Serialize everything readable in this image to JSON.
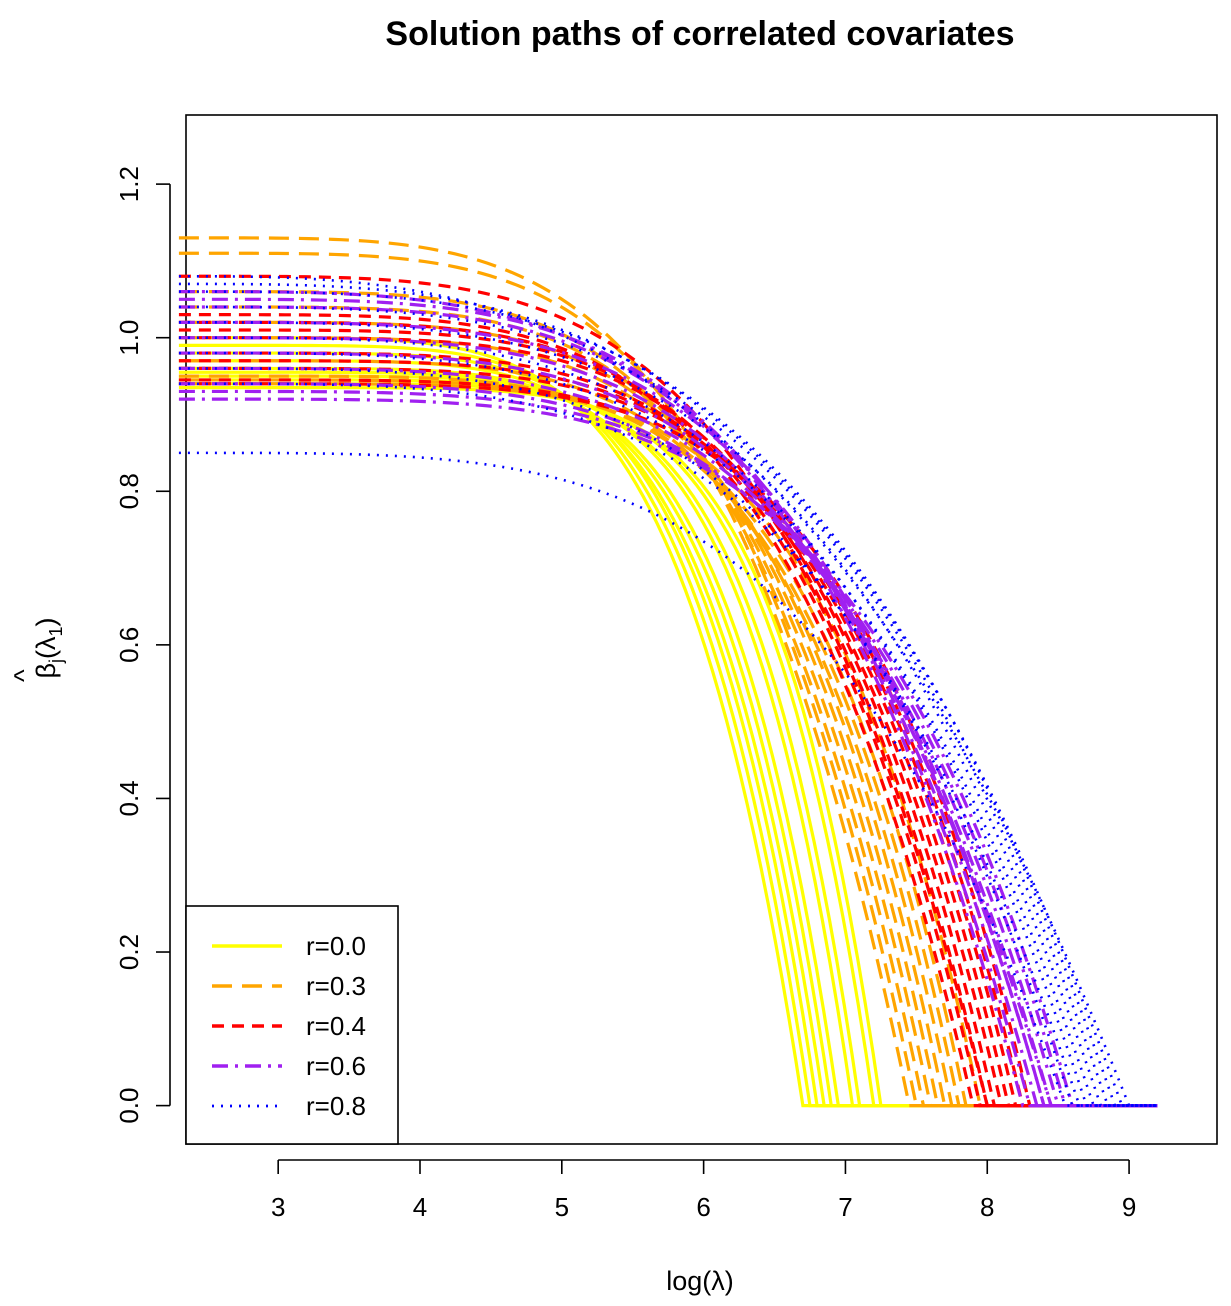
{
  "chart_data": {
    "type": "line",
    "title": "Solution paths of correlated covariates",
    "xlabel": "log(λ)",
    "ylabel_main": "β",
    "ylabel_hat": "^",
    "ylabel_sub": "j",
    "ylabel_arg_open": "(λ",
    "ylabel_arg_sub": "1",
    "ylabel_arg_close": ")",
    "xlim": [
      2.35,
      9.62
    ],
    "ylim": [
      -0.05,
      1.29
    ],
    "xticks": [
      3,
      4,
      5,
      6,
      7,
      8,
      9
    ],
    "yticks": [
      0.0,
      0.2,
      0.4,
      0.6,
      0.8,
      1.0,
      1.2
    ],
    "xtick_labels": [
      "3",
      "4",
      "5",
      "6",
      "7",
      "8",
      "9"
    ],
    "ytick_labels": [
      "0.0",
      "0.2",
      "0.4",
      "0.6",
      "0.8",
      "1.0",
      "1.2"
    ],
    "x_start": 2.3,
    "x_end": 9.2,
    "legend_position": "bottom-left",
    "series": [
      {
        "name": "r=0.0",
        "color": "#FFFF00",
        "dash": "solid",
        "paths": [
          {
            "start": 1.0,
            "zero_x": 6.7,
            "k": 0.6
          },
          {
            "start": 0.99,
            "zero_x": 6.75,
            "k": 0.58
          },
          {
            "start": 0.98,
            "zero_x": 6.8,
            "k": 0.56
          },
          {
            "start": 0.97,
            "zero_x": 6.85,
            "k": 0.55
          },
          {
            "start": 0.96,
            "zero_x": 6.9,
            "k": 0.53
          },
          {
            "start": 0.955,
            "zero_x": 6.95,
            "k": 0.52
          },
          {
            "start": 0.95,
            "zero_x": 7.05,
            "k": 0.5
          },
          {
            "start": 0.945,
            "zero_x": 7.1,
            "k": 0.49
          },
          {
            "start": 0.94,
            "zero_x": 7.2,
            "k": 0.48
          },
          {
            "start": 0.935,
            "zero_x": 7.25,
            "k": 0.47
          }
        ]
      },
      {
        "name": "r=0.3",
        "color": "#FFA500",
        "dash": "long",
        "paths": [
          {
            "start": 1.13,
            "zero_x": 7.45,
            "k": 0.78
          },
          {
            "start": 1.11,
            "zero_x": 7.5,
            "k": 0.76
          },
          {
            "start": 1.06,
            "zero_x": 7.55,
            "k": 0.72
          },
          {
            "start": 1.04,
            "zero_x": 7.6,
            "k": 0.7
          },
          {
            "start": 1.02,
            "zero_x": 7.65,
            "k": 0.68
          },
          {
            "start": 1.0,
            "zero_x": 7.7,
            "k": 0.66
          },
          {
            "start": 0.97,
            "zero_x": 7.75,
            "k": 0.64
          },
          {
            "start": 0.95,
            "zero_x": 7.8,
            "k": 0.62
          },
          {
            "start": 0.945,
            "zero_x": 7.85,
            "k": 0.61
          },
          {
            "start": 0.94,
            "zero_x": 7.95,
            "k": 0.6
          }
        ]
      },
      {
        "name": "r=0.4",
        "color": "#FF0000",
        "dash": "medium",
        "paths": [
          {
            "start": 1.08,
            "zero_x": 8.0,
            "k": 0.8
          },
          {
            "start": 1.03,
            "zero_x": 7.9,
            "k": 0.74
          },
          {
            "start": 1.02,
            "zero_x": 7.95,
            "k": 0.72
          },
          {
            "start": 1.01,
            "zero_x": 8.0,
            "k": 0.7
          },
          {
            "start": 1.0,
            "zero_x": 8.05,
            "k": 0.69
          },
          {
            "start": 0.98,
            "zero_x": 8.1,
            "k": 0.68
          },
          {
            "start": 0.97,
            "zero_x": 8.15,
            "k": 0.67
          },
          {
            "start": 0.96,
            "zero_x": 8.2,
            "k": 0.66
          },
          {
            "start": 0.945,
            "zero_x": 8.25,
            "k": 0.65
          },
          {
            "start": 0.94,
            "zero_x": 8.3,
            "k": 0.64
          }
        ]
      },
      {
        "name": "r=0.6",
        "color": "#A020F0",
        "dash": "dashdot",
        "paths": [
          {
            "start": 1.06,
            "zero_x": 8.45,
            "k": 0.9
          },
          {
            "start": 1.05,
            "zero_x": 8.3,
            "k": 0.82
          },
          {
            "start": 1.04,
            "zero_x": 8.25,
            "k": 0.8
          },
          {
            "start": 1.02,
            "zero_x": 8.4,
            "k": 0.8
          },
          {
            "start": 1.0,
            "zero_x": 8.35,
            "k": 0.78
          },
          {
            "start": 0.98,
            "zero_x": 8.4,
            "k": 0.77
          },
          {
            "start": 0.96,
            "zero_x": 8.45,
            "k": 0.76
          },
          {
            "start": 0.94,
            "zero_x": 8.5,
            "k": 0.75
          },
          {
            "start": 0.93,
            "zero_x": 8.55,
            "k": 0.74
          },
          {
            "start": 0.92,
            "zero_x": 8.6,
            "k": 0.73
          }
        ]
      },
      {
        "name": "r=0.8",
        "color": "#0000FF",
        "dash": "dotted",
        "paths": [
          {
            "start": 1.08,
            "zero_x": 9.0,
            "k": 1.1
          },
          {
            "start": 1.07,
            "zero_x": 8.95,
            "k": 1.0
          },
          {
            "start": 1.06,
            "zero_x": 8.9,
            "k": 0.95
          },
          {
            "start": 1.04,
            "zero_x": 8.85,
            "k": 0.92
          },
          {
            "start": 1.02,
            "zero_x": 8.8,
            "k": 0.9
          },
          {
            "start": 1.0,
            "zero_x": 8.7,
            "k": 0.88
          },
          {
            "start": 0.98,
            "zero_x": 8.75,
            "k": 0.87
          },
          {
            "start": 0.96,
            "zero_x": 8.6,
            "k": 0.86
          },
          {
            "start": 0.94,
            "zero_x": 8.65,
            "k": 0.85
          },
          {
            "start": 0.85,
            "zero_x": 8.55,
            "k": 0.84
          }
        ]
      }
    ]
  }
}
